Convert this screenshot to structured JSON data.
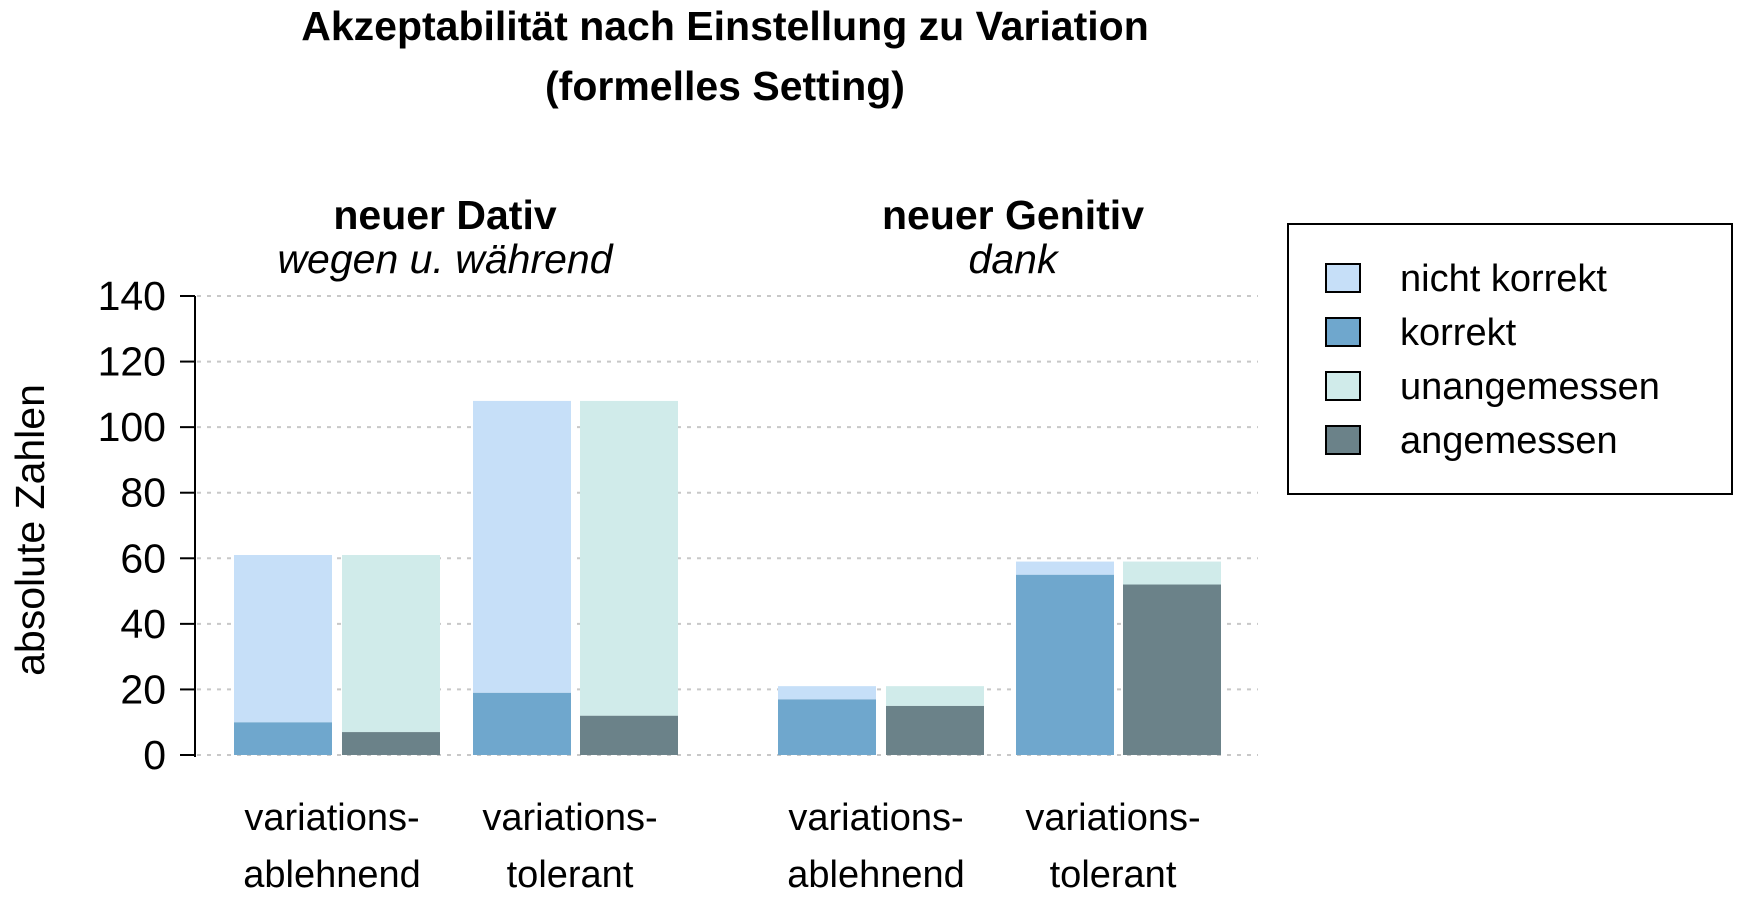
{
  "chart_data": {
    "type": "bar",
    "title": [
      "Akzeptabilität nach Einstellung zu Variation",
      "(formelles Setting)"
    ],
    "ylabel": "absolute Zahlen",
    "ylim": [
      0,
      140
    ],
    "yticks": [
      0,
      20,
      40,
      60,
      80,
      100,
      120,
      140
    ],
    "grid": "horizontal dotted",
    "legend_position": "right",
    "colors": {
      "nicht korrekt": "#c6dff8",
      "korrekt": "#6fa7cd",
      "unangemessen": "#d0ebea",
      "angemessen": "#6b8289"
    },
    "legend": [
      "nicht korrekt",
      "korrekt",
      "unangemessen",
      "angemessen"
    ],
    "groups": [
      {
        "title": "neuer Dativ",
        "subtitle": "wegen u. während",
        "categories": [
          {
            "label_lines": [
              "variations-",
              "ablehnend"
            ],
            "bars": [
              {
                "stack": [
                  {
                    "series": "korrekt",
                    "value": 10
                  },
                  {
                    "series": "nicht korrekt",
                    "value": 51
                  }
                ]
              },
              {
                "stack": [
                  {
                    "series": "angemessen",
                    "value": 7
                  },
                  {
                    "series": "unangemessen",
                    "value": 54
                  }
                ]
              }
            ]
          },
          {
            "label_lines": [
              "variations-",
              "tolerant"
            ],
            "bars": [
              {
                "stack": [
                  {
                    "series": "korrekt",
                    "value": 19
                  },
                  {
                    "series": "nicht korrekt",
                    "value": 89
                  }
                ]
              },
              {
                "stack": [
                  {
                    "series": "angemessen",
                    "value": 12
                  },
                  {
                    "series": "unangemessen",
                    "value": 96
                  }
                ]
              }
            ]
          }
        ]
      },
      {
        "title": "neuer Genitiv",
        "subtitle": "dank",
        "categories": [
          {
            "label_lines": [
              "variations-",
              "ablehnend"
            ],
            "bars": [
              {
                "stack": [
                  {
                    "series": "korrekt",
                    "value": 17
                  },
                  {
                    "series": "nicht korrekt",
                    "value": 4
                  }
                ]
              },
              {
                "stack": [
                  {
                    "series": "angemessen",
                    "value": 15
                  },
                  {
                    "series": "unangemessen",
                    "value": 6
                  }
                ]
              }
            ]
          },
          {
            "label_lines": [
              "variations-",
              "tolerant"
            ],
            "bars": [
              {
                "stack": [
                  {
                    "series": "korrekt",
                    "value": 55
                  },
                  {
                    "series": "nicht korrekt",
                    "value": 4
                  }
                ]
              },
              {
                "stack": [
                  {
                    "series": "angemessen",
                    "value": 52
                  },
                  {
                    "series": "unangemessen",
                    "value": 7
                  }
                ]
              }
            ]
          }
        ]
      }
    ]
  }
}
